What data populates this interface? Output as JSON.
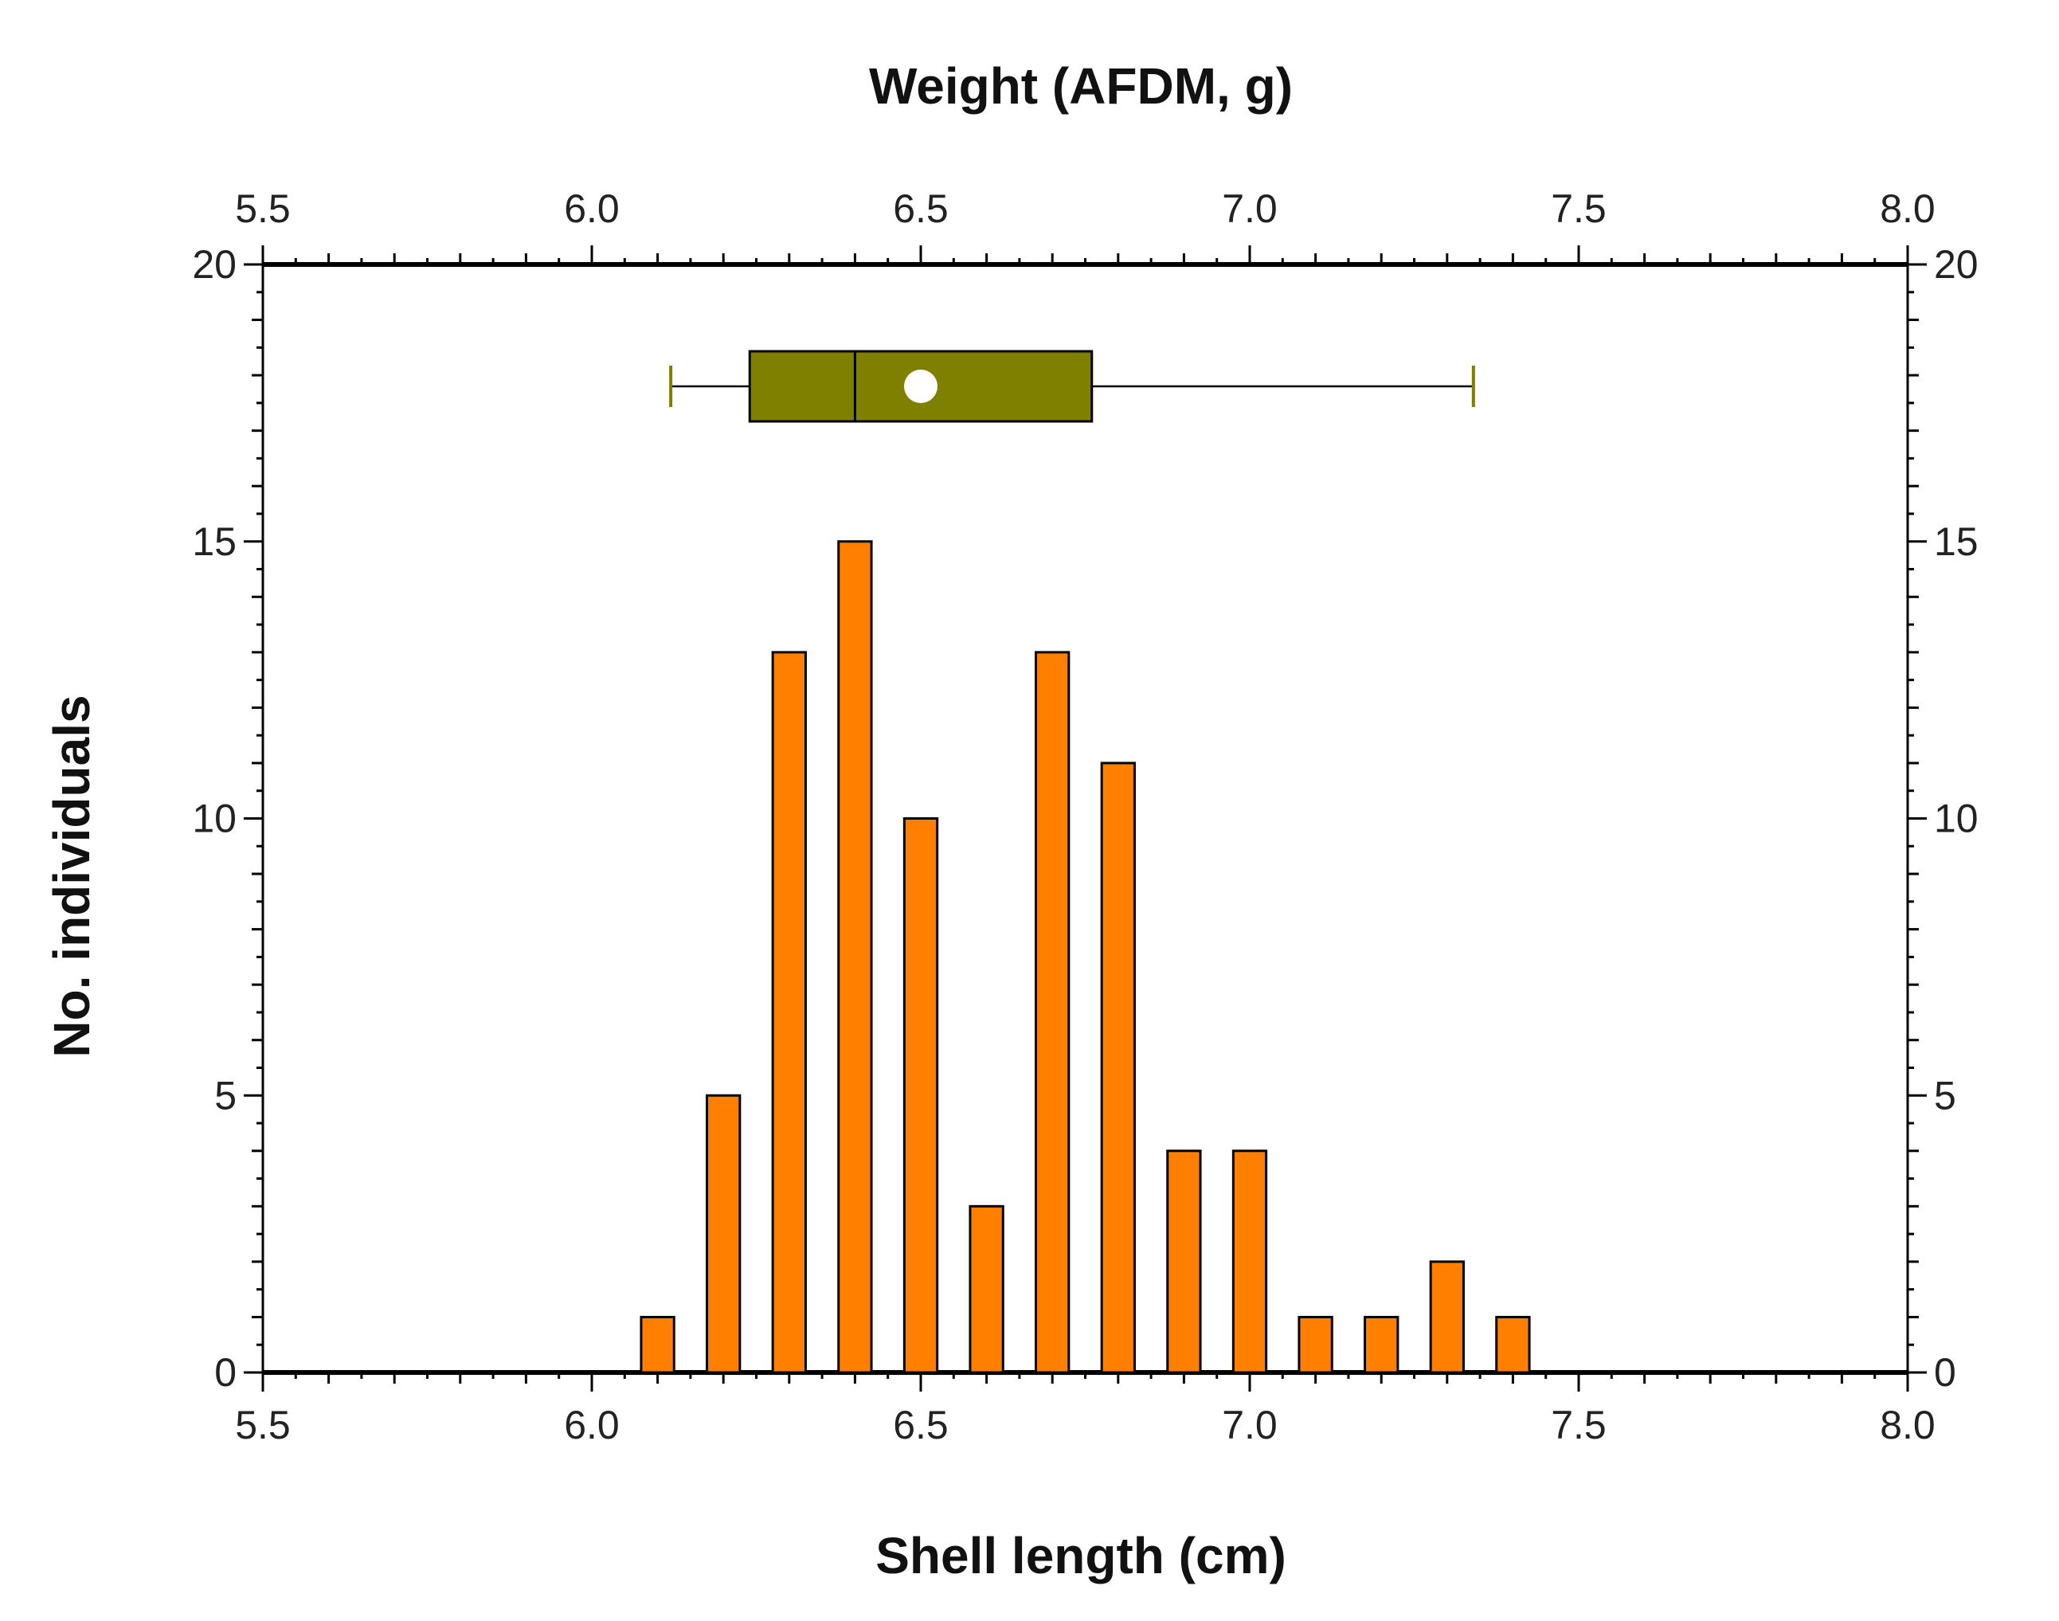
{
  "chart_data": {
    "type": "bar",
    "x_label": "Shell length (cm)",
    "x2_label": "Weight (AFDM, g)",
    "y_label": "No. individuals",
    "x_range": [
      5.5,
      8.0
    ],
    "y_range": [
      0,
      20
    ],
    "x_ticks": [
      "5.5",
      "6.0",
      "6.5",
      "7.0",
      "7.5",
      "8.0"
    ],
    "x2_ticks": [
      "5.5",
      "6.0",
      "6.5",
      "7.0",
      "7.5",
      "8.0"
    ],
    "y_ticks": [
      "0",
      "5",
      "10",
      "15",
      "20"
    ],
    "y2_ticks": [
      "0",
      "5",
      "10",
      "15",
      "20"
    ],
    "bin_centers": [
      6.1,
      6.2,
      6.3,
      6.4,
      6.5,
      6.6,
      6.7,
      6.8,
      6.9,
      7.0,
      7.1,
      7.2,
      7.3,
      7.4
    ],
    "values": [
      1,
      5,
      13,
      15,
      10,
      3,
      13,
      11,
      4,
      4,
      1,
      1,
      2,
      1
    ],
    "bar_width_data": 0.05,
    "bar_color": "#ff8000",
    "boxplot": {
      "axis": "top",
      "y_position": 17.8,
      "whisker_low": 6.12,
      "q1": 6.24,
      "median": 6.4,
      "q3": 6.76,
      "whisker_high": 7.34,
      "mean": 6.5,
      "fill_color": "#808000",
      "whisker_color": "#808000",
      "mean_color": "#ffffff"
    }
  }
}
